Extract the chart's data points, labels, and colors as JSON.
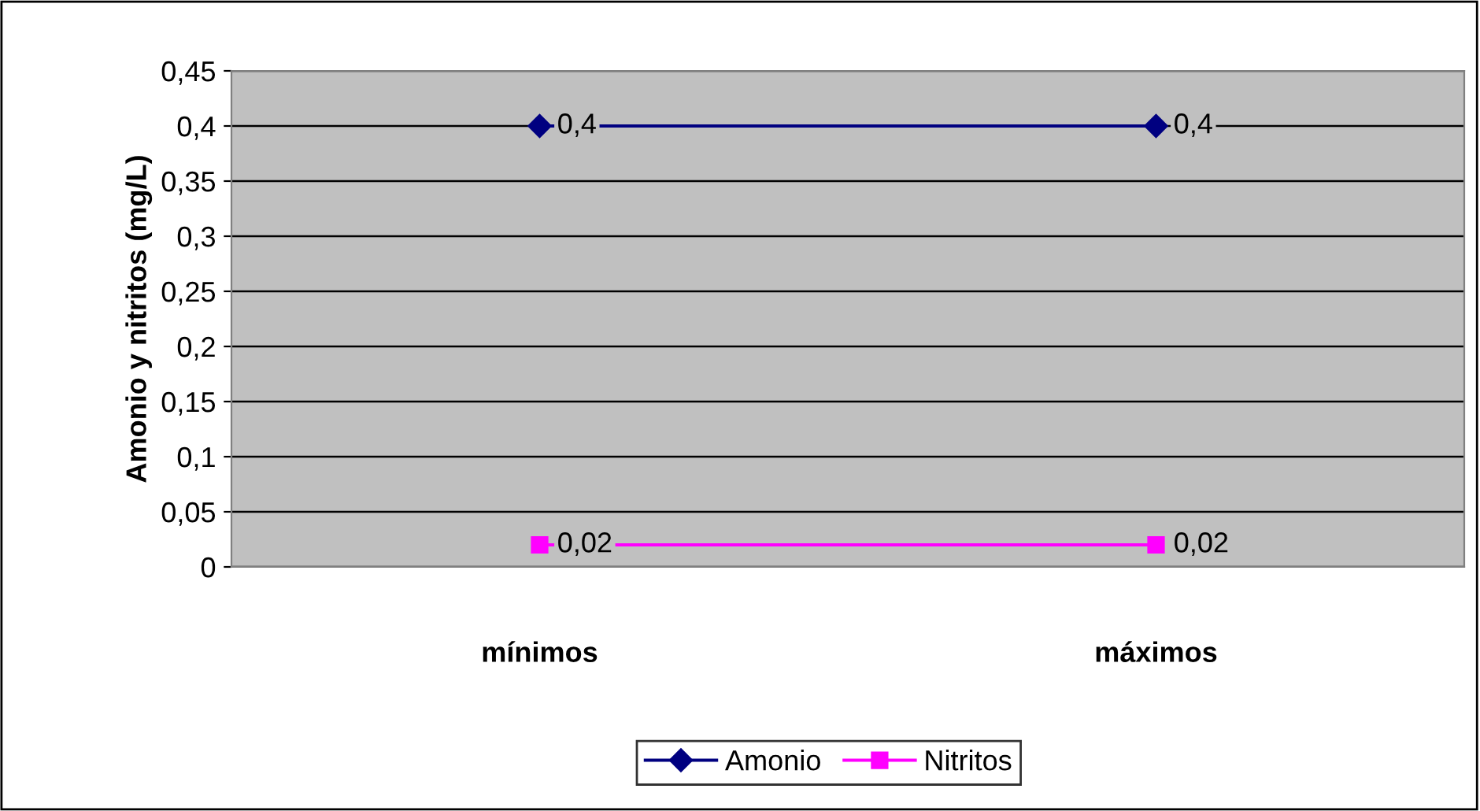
{
  "chart_data": {
    "type": "line",
    "ylabel": "Amonio y nitritos (mg/L)",
    "categories": [
      "mínimos",
      "máximos"
    ],
    "series": [
      {
        "name": "Amonio",
        "color": "#000080",
        "values": [
          0.4,
          0.4
        ],
        "marker": "diamond",
        "value_labels": [
          "0,4",
          "0,4"
        ]
      },
      {
        "name": "Nitritos",
        "color": "#ff00ff",
        "values": [
          0.02,
          0.02
        ],
        "marker": "square",
        "value_labels": [
          "0,02",
          "0,02"
        ]
      }
    ],
    "ylim": [
      0,
      0.45
    ],
    "yticks": [
      0,
      {
        "value": 0.05,
        "label": "0,05"
      },
      {
        "value": 0.1,
        "label": "0,1"
      },
      {
        "value": 0.15,
        "label": "0,15"
      },
      {
        "value": 0.2,
        "label": "0,2"
      },
      {
        "value": 0.25,
        "label": "0,25"
      },
      {
        "value": 0.3,
        "label": "0,3"
      },
      {
        "value": 0.35,
        "label": "0,35"
      },
      {
        "value": 0.4,
        "label": "0,4"
      },
      {
        "value": 0.45,
        "label": "0,45"
      }
    ],
    "grid": "y",
    "legend": "bottom",
    "line_style": "solid"
  }
}
